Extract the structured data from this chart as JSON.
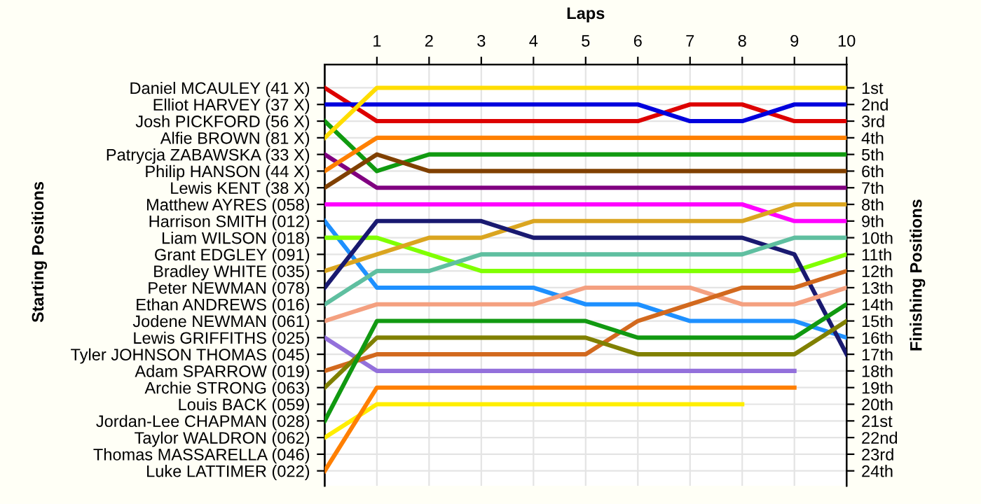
{
  "chart_data": {
    "type": "line",
    "xlabel": "Laps",
    "annotations": [
      "Starting Positions"
    ],
    "y2label": "Finishing Positions",
    "x": [
      0,
      1,
      2,
      3,
      4,
      5,
      6,
      7,
      8,
      9,
      10
    ],
    "xlim": [
      0,
      10
    ],
    "xticks": [
      1,
      2,
      3,
      4,
      5,
      6,
      7,
      8,
      9,
      10
    ],
    "y_categories": [
      "Daniel MCAULEY (41 X)",
      "Elliot HARVEY (37 X)",
      "Josh PICKFORD (56 X)",
      "Alfie BROWN (81 X)",
      "Patrycja ZABAWSKA (33 X)",
      "Philip HANSON (44 X)",
      "Lewis KENT (38 X)",
      "Matthew AYRES (058)",
      "Harrison SMITH (012)",
      "Liam WILSON (018)",
      "Grant EDGLEY (091)",
      "Bradley WHITE (035)",
      "Peter NEWMAN (078)",
      "Ethan ANDREWS (016)",
      "Jodene NEWMAN (061)",
      "Lewis GRIFFITHS (025)",
      "Tyler JOHNSON THOMAS (045)",
      "Adam SPARROW (019)",
      "Archie STRONG (063)",
      "Louis BACK (059)",
      "Jordan-Lee CHAPMAN (028)",
      "Taylor WALDRON (062)",
      "Thomas MASSARELLA (046)",
      "Luke LATTIMER (022)"
    ],
    "y2lim": [
      24.9,
      -0.4
    ],
    "y2ticks": [
      {
        "value": 1,
        "label": "1st"
      },
      {
        "value": 2,
        "label": "2nd"
      },
      {
        "value": 3,
        "label": "3rd"
      },
      {
        "value": 4,
        "label": "4th"
      },
      {
        "value": 5,
        "label": "5th"
      },
      {
        "value": 6,
        "label": "6th"
      },
      {
        "value": 7,
        "label": "7th"
      },
      {
        "value": 8,
        "label": "8th"
      },
      {
        "value": 9,
        "label": "9th"
      },
      {
        "value": 10,
        "label": "10th"
      },
      {
        "value": 11,
        "label": "11th"
      },
      {
        "value": 12,
        "label": "12th"
      },
      {
        "value": 13,
        "label": "13th"
      },
      {
        "value": 14,
        "label": "14th"
      },
      {
        "value": 15,
        "label": "15th"
      },
      {
        "value": 16,
        "label": "16th"
      },
      {
        "value": 17,
        "label": "17th"
      },
      {
        "value": 18,
        "label": "18th"
      },
      {
        "value": 19,
        "label": "19th"
      },
      {
        "value": 20,
        "label": "20th"
      },
      {
        "value": 21,
        "label": "21st"
      },
      {
        "value": 22,
        "label": "22nd"
      },
      {
        "value": 23,
        "label": "23rd"
      },
      {
        "value": 24,
        "label": "24th"
      }
    ],
    "grid": true,
    "legend": false,
    "marker": "none",
    "line_style": "solid",
    "series": [
      {
        "color": "#dd0000",
        "axis": "y2",
        "values": [
          1,
          3,
          3,
          3,
          3,
          3,
          3,
          2,
          2,
          3,
          3
        ]
      },
      {
        "color": "#0000dd",
        "axis": "y2",
        "values": [
          2,
          2,
          2,
          2,
          2,
          2,
          2,
          3,
          3,
          2,
          2
        ]
      },
      {
        "color": "#109a10",
        "axis": "y2",
        "values": [
          3,
          6,
          5,
          5,
          5,
          5,
          5,
          5,
          5,
          5,
          5
        ]
      },
      {
        "color": "#ffdd00",
        "axis": "y2",
        "values": [
          4,
          1,
          1,
          1,
          1,
          1,
          1,
          1,
          1,
          1,
          1
        ]
      },
      {
        "color": "#800080",
        "axis": "y2",
        "values": [
          5,
          7,
          7,
          7,
          7,
          7,
          7,
          7,
          7,
          7,
          7
        ]
      },
      {
        "color": "#ff8000",
        "axis": "y2",
        "values": [
          6,
          4,
          4,
          4,
          4,
          4,
          4,
          4,
          4,
          4,
          4
        ]
      },
      {
        "color": "#804000",
        "axis": "y2",
        "values": [
          7,
          5,
          6,
          6,
          6,
          6,
          6,
          6,
          6,
          6,
          6
        ]
      },
      {
        "color": "#ff00ff",
        "axis": "y2",
        "values": [
          8,
          8,
          8,
          8,
          8,
          8,
          8,
          8,
          8,
          9,
          9
        ]
      },
      {
        "color": "#1e90ff",
        "axis": "y2",
        "values": [
          9,
          13,
          13,
          13,
          13,
          14,
          14,
          15,
          15,
          15,
          16
        ]
      },
      {
        "color": "#80ff00",
        "axis": "y2",
        "values": [
          10,
          10,
          11,
          12,
          12,
          12,
          12,
          12,
          12,
          12,
          11
        ]
      },
      {
        "color": "#daa520",
        "axis": "y2",
        "values": [
          12,
          11,
          10,
          10,
          9,
          9,
          9,
          9,
          9,
          8,
          8
        ]
      },
      {
        "color": "#191970",
        "axis": "y2",
        "values": [
          13,
          9,
          9,
          9,
          10,
          10,
          10,
          10,
          10,
          11,
          17
        ]
      },
      {
        "color": "#5fbfa0",
        "axis": "y2",
        "values": [
          14,
          12,
          12,
          11,
          11,
          11,
          11,
          11,
          11,
          10,
          10
        ]
      },
      {
        "color": "#f4a080",
        "axis": "y2",
        "values": [
          15,
          14,
          14,
          14,
          14,
          13,
          13,
          13,
          14,
          14,
          13
        ]
      },
      {
        "color": "#9370db",
        "axis": "y2",
        "values": [
          16,
          18,
          18,
          18,
          18,
          18,
          18,
          18,
          18,
          18,
          null
        ]
      },
      {
        "color": "#d2691e",
        "axis": "y2",
        "values": [
          18,
          17,
          17,
          17,
          17,
          17,
          15,
          14,
          13,
          13,
          12
        ]
      },
      {
        "color": "#808000",
        "axis": "y2",
        "values": [
          19,
          16,
          16,
          16,
          16,
          16,
          17,
          17,
          17,
          17,
          15
        ]
      },
      {
        "color": "#119911",
        "axis": "y2",
        "values": [
          21,
          15,
          15,
          15,
          15,
          15,
          16,
          16,
          16,
          16,
          14
        ]
      },
      {
        "color": "#ffee00",
        "axis": "y2",
        "values": [
          22,
          20,
          20,
          20,
          20,
          20,
          20,
          20,
          20,
          null,
          null
        ]
      },
      {
        "color": "#ff7f00",
        "axis": "y2",
        "values": [
          24,
          19,
          19,
          19,
          19,
          19,
          19,
          19,
          19,
          19,
          null
        ]
      }
    ]
  }
}
